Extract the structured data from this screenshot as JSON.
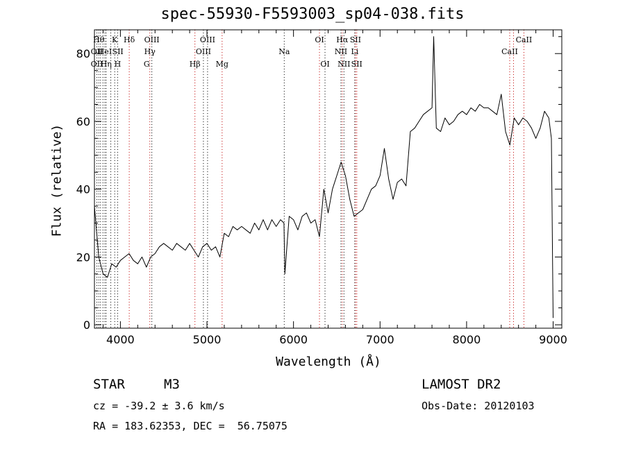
{
  "chart_data": {
    "type": "line",
    "title": "spec-55930-F5593003_sp04-038.fits",
    "xlabel": "Wavelength (Å)",
    "ylabel": "Flux (relative)",
    "xlim": [
      3700,
      9100
    ],
    "ylim": [
      -1,
      87
    ],
    "xticks": [
      4000,
      5000,
      6000,
      7000,
      8000,
      9000
    ],
    "yticks": [
      0,
      20,
      40,
      60,
      80
    ],
    "grid": false,
    "series": [
      {
        "color": "#000000",
        "x": [
          3700,
          3750,
          3800,
          3850,
          3900,
          3950,
          4000,
          4050,
          4100,
          4150,
          4200,
          4250,
          4300,
          4350,
          4400,
          4450,
          4500,
          4550,
          4600,
          4650,
          4700,
          4750,
          4800,
          4850,
          4900,
          4950,
          5000,
          5050,
          5100,
          5150,
          5200,
          5250,
          5300,
          5350,
          5400,
          5450,
          5500,
          5550,
          5600,
          5650,
          5700,
          5750,
          5800,
          5850,
          5890,
          5900,
          5950,
          6000,
          6050,
          6100,
          6150,
          6200,
          6250,
          6300,
          6350,
          6400,
          6450,
          6500,
          6550,
          6600,
          6650,
          6700,
          6750,
          6800,
          6850,
          6900,
          6950,
          7000,
          7050,
          7100,
          7150,
          7200,
          7250,
          7300,
          7350,
          7400,
          7450,
          7500,
          7550,
          7600,
          7620,
          7650,
          7700,
          7750,
          7800,
          7850,
          7900,
          7950,
          8000,
          8050,
          8100,
          8150,
          8200,
          8250,
          8300,
          8350,
          8400,
          8450,
          8500,
          8550,
          8600,
          8650,
          8700,
          8750,
          8800,
          8850,
          8900,
          8950,
          8980,
          9000
        ],
        "y": [
          35,
          20,
          15,
          14,
          18,
          17,
          19,
          20,
          21,
          19,
          18,
          20,
          17,
          20,
          21,
          23,
          24,
          23,
          22,
          24,
          23,
          22,
          24,
          22,
          20,
          23,
          24,
          22,
          23,
          20,
          27,
          26,
          29,
          28,
          29,
          28,
          27,
          30,
          28,
          31,
          28,
          31,
          29,
          31,
          30,
          15,
          32,
          31,
          28,
          32,
          33,
          30,
          31,
          26,
          40,
          33,
          40,
          44,
          48,
          44,
          37,
          32,
          33,
          34,
          37,
          40,
          41,
          44,
          52,
          43,
          37,
          42,
          43,
          41,
          57,
          58,
          60,
          62,
          63,
          64,
          85,
          58,
          57,
          61,
          59,
          60,
          62,
          63,
          62,
          64,
          63,
          65,
          64,
          64,
          63,
          62,
          68,
          57,
          53,
          61,
          59,
          61,
          60,
          58,
          55,
          58,
          63,
          61,
          55,
          2
        ]
      }
    ],
    "line_labels": [
      {
        "wl": 3750,
        "row": 1,
        "text": "Hθ",
        "color": "#000000"
      },
      {
        "wl": 3728,
        "row": 2,
        "text": "OII",
        "color": "#000000"
      },
      {
        "wl": 3728,
        "row": 3,
        "text": "OII",
        "color": "#000000"
      },
      {
        "wl": 3934,
        "row": 1,
        "text": "K",
        "color": "#000000"
      },
      {
        "wl": 3820,
        "row": 2,
        "text": "HeI",
        "color": "#000000"
      },
      {
        "wl": 3835,
        "row": 3,
        "text": "Hη",
        "color": "#000000"
      },
      {
        "wl": 4102,
        "row": 1,
        "text": "Hδ",
        "color": "#000000"
      },
      {
        "wl": 3970,
        "row": 2,
        "text": "SII",
        "color": "#000000"
      },
      {
        "wl": 3968,
        "row": 3,
        "text": "H",
        "color": "#000000"
      },
      {
        "wl": 4363,
        "row": 1,
        "text": "OIII",
        "color": "#000000"
      },
      {
        "wl": 4340,
        "row": 2,
        "text": "Hγ",
        "color": "#000000"
      },
      {
        "wl": 4304,
        "row": 3,
        "text": "G",
        "color": "#000000"
      },
      {
        "wl": 5007,
        "row": 1,
        "text": "OIII",
        "color": "#000000"
      },
      {
        "wl": 4959,
        "row": 2,
        "text": "OIII",
        "color": "#000000"
      },
      {
        "wl": 4861,
        "row": 3,
        "text": "Hβ",
        "color": "#000000"
      },
      {
        "wl": 5175,
        "row": 3,
        "text": "Mg",
        "color": "#000000"
      },
      {
        "wl": 5893,
        "row": 2,
        "text": "Na",
        "color": "#000000"
      },
      {
        "wl": 6300,
        "row": 1,
        "text": "OI",
        "color": "#000000"
      },
      {
        "wl": 6364,
        "row": 3,
        "text": "OI",
        "color": "#000000"
      },
      {
        "wl": 6563,
        "row": 1,
        "text": "Hα",
        "color": "#000000"
      },
      {
        "wl": 6548,
        "row": 2,
        "text": "NII",
        "color": "#000000"
      },
      {
        "wl": 6583,
        "row": 3,
        "text": "NII",
        "color": "#000000"
      },
      {
        "wl": 6716,
        "row": 1,
        "text": "SII",
        "color": "#000000"
      },
      {
        "wl": 6708,
        "row": 2,
        "text": "Li",
        "color": "#000000"
      },
      {
        "wl": 6731,
        "row": 3,
        "text": "SII",
        "color": "#000000"
      },
      {
        "wl": 8662,
        "row": 1,
        "text": "CaII",
        "color": "#000000"
      },
      {
        "wl": 8498,
        "row": 2,
        "text": "CaII",
        "color": "#000000"
      }
    ],
    "line_markers": {
      "wavelengths": [
        3728,
        3750,
        3770,
        3798,
        3820,
        3835,
        3889,
        3934,
        3968,
        4102,
        4340,
        4363,
        4861,
        4959,
        5007,
        5175,
        5893,
        6300,
        6364,
        6548,
        6563,
        6583,
        6708,
        6716,
        6731,
        8498,
        8542,
        8662
      ],
      "colors": [
        "#000000",
        "#000000",
        "#000000",
        "#000000",
        "#000000",
        "#000000",
        "#000000",
        "#000000",
        "#000000",
        "#c00000",
        "#c00000",
        "#000000",
        "#c00000",
        "#000000",
        "#000000",
        "#c00000",
        "#000000",
        "#c00000",
        "#000000",
        "#000000",
        "#c00000",
        "#000000",
        "#000000",
        "#c00000",
        "#c00000",
        "#c00000",
        "#c00000",
        "#c00000"
      ]
    }
  },
  "footer": {
    "object_class": "STAR",
    "subclass": "M3",
    "survey": "LAMOST DR2",
    "cz": "cz = -39.2 ± 3.6 km/s",
    "obs_date": "Obs-Date: 20120103",
    "coords": "RA = 183.62353, DEC =  56.75075"
  }
}
